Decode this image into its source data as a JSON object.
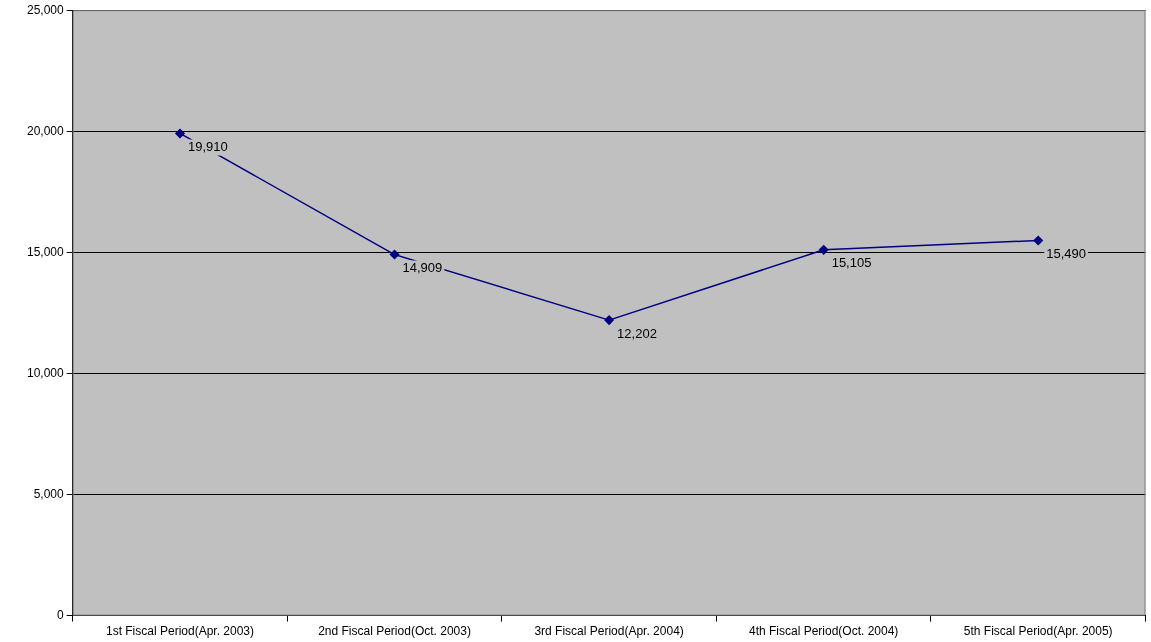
{
  "chart_data": {
    "type": "line",
    "categories": [
      "1st Fiscal Period(Apr. 2003)",
      "2nd Fiscal Period(Oct. 2003)",
      "3rd Fiscal Period(Apr. 2004)",
      "4th Fiscal Period(Oct. 2004)",
      "5th Fiscal Period(Apr. 2005)"
    ],
    "series": [
      {
        "color": "#000080",
        "values": [
          19910,
          14909,
          12202,
          15105,
          15490
        ],
        "value_labels": [
          "19,910",
          "14,909",
          "12,202",
          "15,105",
          "15,490"
        ]
      }
    ],
    "ylim": [
      0,
      25000
    ],
    "yticks": [
      0,
      {
        "value": 5000,
        "label": "5,000"
      },
      {
        "value": 10000,
        "label": "10,000"
      },
      {
        "value": 15000,
        "label": "15,000"
      },
      {
        "value": 20000,
        "label": "20,000"
      },
      {
        "value": 25000,
        "label": "25,000"
      }
    ],
    "grid": "y",
    "legend": false,
    "marker": "diamond",
    "line_style": "solid"
  }
}
